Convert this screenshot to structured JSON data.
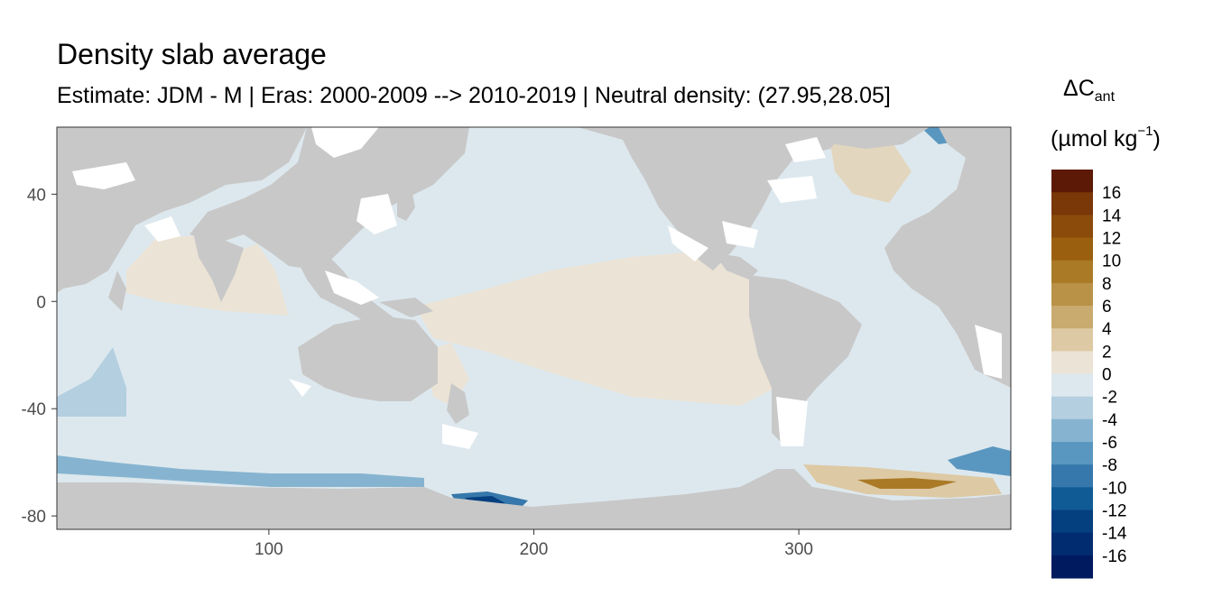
{
  "title": "Density slab average",
  "subtitle": "Estimate: JDM - M | Eras: 2000-2009 --> 2010-2019 | Neutral density: (27.95,28.05]",
  "legend": {
    "symbol": "ΔC",
    "subscript": "ant",
    "unit_open": "(µmol kg",
    "unit_sup": "−1",
    "unit_close": ")"
  },
  "chart_data": {
    "type": "heatmap",
    "x_ticks": [
      100,
      200,
      300
    ],
    "y_ticks": [
      40,
      0,
      -40,
      -80
    ],
    "xlim": [
      20,
      380
    ],
    "ylim": [
      -85,
      65
    ],
    "land_color": "#c8c8c8",
    "colorbar": {
      "labels": [
        "16",
        "14",
        "12",
        "10",
        "8",
        "6",
        "4",
        "2",
        "0",
        "-2",
        "-4",
        "-6",
        "-8",
        "-10",
        "-12",
        "-14",
        "-16"
      ],
      "colors": [
        "#5c1906",
        "#7a3708",
        "#8b4b0b",
        "#9a600f",
        "#aa7a26",
        "#b99248",
        "#c9aa6f",
        "#ddc9a4",
        "#ebe3d5",
        "#dde8ee",
        "#b3cfe0",
        "#86b4d0",
        "#5a97c0",
        "#3678ab",
        "#105b96",
        "#043f80",
        "#022c70",
        "#001a60"
      ]
    }
  }
}
